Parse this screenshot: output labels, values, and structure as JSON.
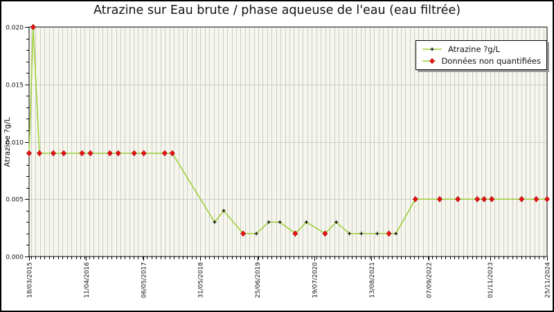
{
  "window": {
    "title": "Atrazine sur Eau brute / phase aqueuse de l'eau (eau filtrée)"
  },
  "chart_data": {
    "type": "line",
    "title": "Atrazine sur Eau brute / phase aqueuse de l'eau (eau filtrée)",
    "xlabel": "",
    "ylabel": "Atrazine ?g/L",
    "ylim": [
      0.0,
      0.02
    ],
    "y_major_ticks": [
      0.0,
      0.005,
      0.01,
      0.015,
      0.02
    ],
    "y_minor_step": 0.001,
    "x_axis": {
      "start_date": "18/03/2015",
      "end_date": "25/11/2024",
      "tick_labels": [
        "18/03/2015",
        "11/04/2016",
        "06/05/2017",
        "31/05/2018",
        "25/06/2019",
        "19/07/2020",
        "13/08/2021",
        "07/09/2022",
        "01/11/2023",
        "25/11/2024"
      ],
      "minor_grid": "monthly"
    },
    "grid": {
      "vertical_monthly": true,
      "horizontal_major": true
    },
    "legend": {
      "position": "top-right",
      "entries": [
        {
          "label": "Atrazine ?g/L",
          "marker": "black-plus",
          "line_color": "#9ACD32"
        },
        {
          "label": "Données non quantifiées",
          "marker": "red-diamond",
          "line_color": "#9ACD32"
        }
      ]
    },
    "series": [
      {
        "name": "Atrazine ?g/L",
        "color": "#9ACD32",
        "points": [
          {
            "date": "18/03/2015",
            "value": 0.009,
            "quantified": false
          },
          {
            "date": "15/04/2015",
            "value": 0.02,
            "quantified": false
          },
          {
            "date": "28/05/2015",
            "value": 0.009,
            "quantified": false
          },
          {
            "date": "31/08/2015",
            "value": 0.009,
            "quantified": false
          },
          {
            "date": "10/11/2015",
            "value": 0.009,
            "quantified": false
          },
          {
            "date": "14/03/2016",
            "value": 0.009,
            "quantified": false
          },
          {
            "date": "10/05/2016",
            "value": 0.009,
            "quantified": false
          },
          {
            "date": "20/09/2016",
            "value": 0.009,
            "quantified": false
          },
          {
            "date": "16/11/2016",
            "value": 0.009,
            "quantified": false
          },
          {
            "date": "05/03/2017",
            "value": 0.009,
            "quantified": false
          },
          {
            "date": "10/05/2017",
            "value": 0.009,
            "quantified": false
          },
          {
            "date": "30/09/2017",
            "value": 0.009,
            "quantified": false
          },
          {
            "date": "21/11/2017",
            "value": 0.009,
            "quantified": false
          },
          {
            "date": "06/09/2018",
            "value": 0.003,
            "quantified": true
          },
          {
            "date": "07/11/2018",
            "value": 0.004,
            "quantified": true
          },
          {
            "date": "20/03/2019",
            "value": 0.002,
            "quantified": false
          },
          {
            "date": "18/06/2019",
            "value": 0.002,
            "quantified": true
          },
          {
            "date": "11/09/2019",
            "value": 0.003,
            "quantified": true
          },
          {
            "date": "26/11/2019",
            "value": 0.003,
            "quantified": true
          },
          {
            "date": "10/03/2020",
            "value": 0.002,
            "quantified": false
          },
          {
            "date": "25/05/2020",
            "value": 0.003,
            "quantified": true
          },
          {
            "date": "30/09/2020",
            "value": 0.002,
            "quantified": false
          },
          {
            "date": "15/12/2020",
            "value": 0.003,
            "quantified": true
          },
          {
            "date": "15/03/2021",
            "value": 0.002,
            "quantified": true
          },
          {
            "date": "04/06/2021",
            "value": 0.002,
            "quantified": true
          },
          {
            "date": "21/09/2021",
            "value": 0.002,
            "quantified": true
          },
          {
            "date": "10/12/2021",
            "value": 0.002,
            "quantified": false
          },
          {
            "date": "27/01/2022",
            "value": 0.002,
            "quantified": true
          },
          {
            "date": "09/06/2022",
            "value": 0.005,
            "quantified": false
          },
          {
            "date": "22/11/2022",
            "value": 0.005,
            "quantified": false
          },
          {
            "date": "26/03/2023",
            "value": 0.005,
            "quantified": false
          },
          {
            "date": "06/08/2023",
            "value": 0.005,
            "quantified": false
          },
          {
            "date": "22/09/2023",
            "value": 0.005,
            "quantified": false
          },
          {
            "date": "13/11/2023",
            "value": 0.005,
            "quantified": false
          },
          {
            "date": "04/06/2024",
            "value": 0.005,
            "quantified": false
          },
          {
            "date": "12/09/2024",
            "value": 0.005,
            "quantified": false
          },
          {
            "date": "25/11/2024",
            "value": 0.005,
            "quantified": false
          }
        ]
      }
    ],
    "colors": {
      "line": "#9ACD32",
      "quantified_marker": "#000000",
      "nonquantified_marker": "#EE1111",
      "nonquantified_marker_edge": "#990000",
      "plot_bg": "#F6F6EC",
      "grid": "#CCCCCC",
      "axis": "#000000",
      "text": "#111111",
      "legend_shadow": "#999999"
    }
  }
}
